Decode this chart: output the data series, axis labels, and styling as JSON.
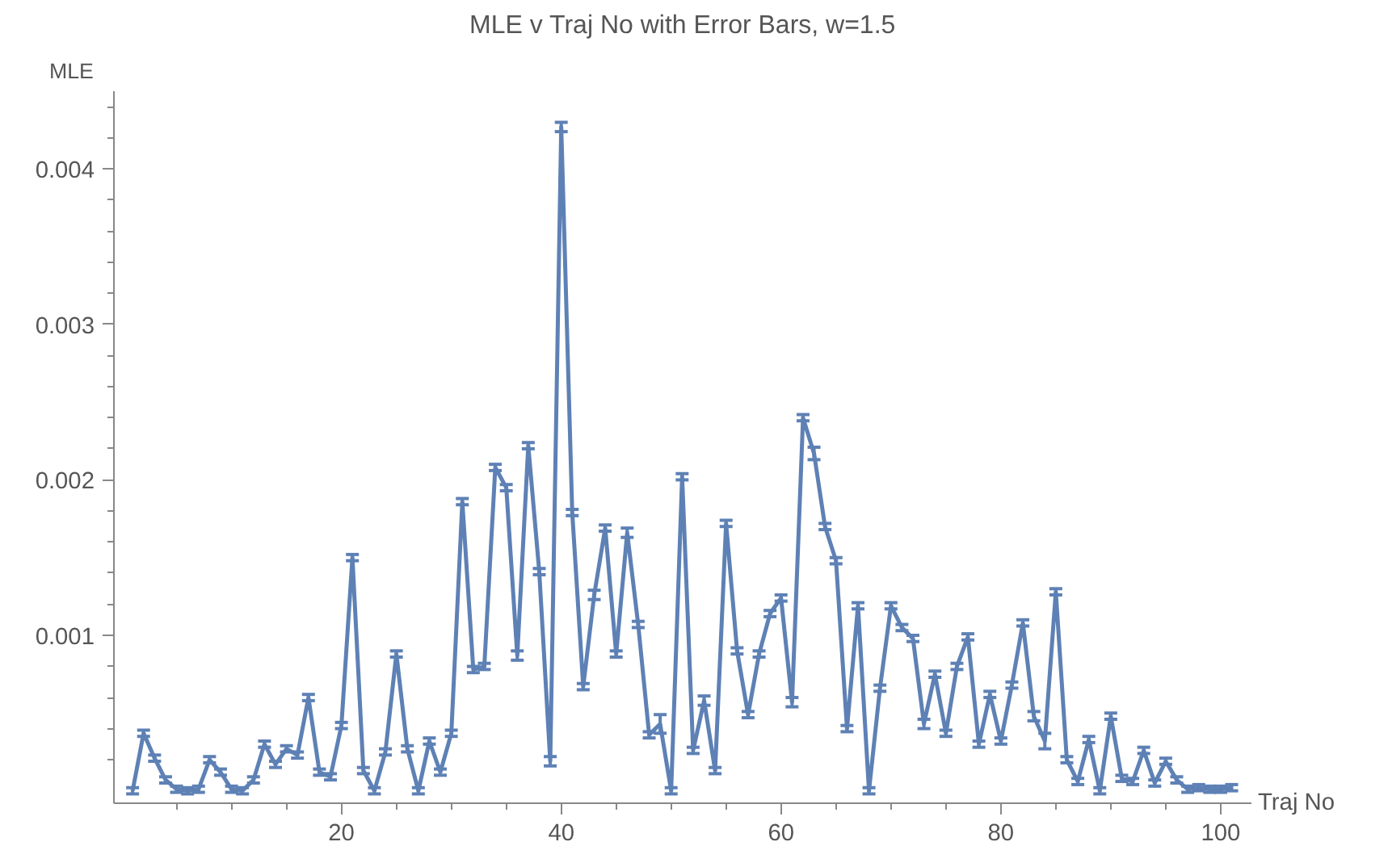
{
  "chart_data": {
    "type": "line",
    "title": "MLE v Traj No with Error Bars, w=1.5",
    "xlabel": "Traj No",
    "ylabel": "MLE",
    "x": [
      1,
      2,
      3,
      4,
      5,
      6,
      7,
      8,
      9,
      10,
      11,
      12,
      13,
      14,
      15,
      16,
      17,
      18,
      19,
      20,
      21,
      22,
      23,
      24,
      25,
      26,
      27,
      28,
      29,
      30,
      31,
      32,
      33,
      34,
      35,
      36,
      37,
      38,
      39,
      40,
      41,
      42,
      43,
      44,
      45,
      46,
      47,
      48,
      49,
      50,
      51,
      52,
      53,
      54,
      55,
      56,
      57,
      58,
      59,
      60,
      61,
      62,
      63,
      64,
      65,
      66,
      67,
      68,
      69,
      70,
      71,
      72,
      73,
      74,
      75,
      76,
      77,
      78,
      79,
      80,
      81,
      82,
      83,
      84,
      85,
      86,
      87,
      88,
      89,
      90,
      91,
      92,
      93,
      94,
      95,
      96,
      97,
      98,
      99,
      100,
      101
    ],
    "series": [
      {
        "color": "#5e81b5",
        "values": [
          0,
          0.00037,
          0.00021,
          7e-05,
          1e-05,
          0,
          1e-05,
          0.0002,
          0.00012,
          1e-05,
          0,
          7e-05,
          0.0003,
          0.00017,
          0.00027,
          0.00023,
          0.0006,
          0.00012,
          9e-05,
          0.00042,
          0.0015,
          0.00013,
          0,
          0.00025,
          0.00088,
          0.00027,
          0,
          0.00032,
          0.00012,
          0.00037,
          0.00186,
          0.00078,
          0.0008,
          0.00208,
          0.00195,
          0.00087,
          0.00222,
          0.00141,
          0.00019,
          0.00427,
          0.00179,
          0.00067,
          0.00126,
          0.00169,
          0.00088,
          0.00166,
          0.00107,
          0.00036,
          0.00043,
          0,
          0.00202,
          0.00026,
          0.00058,
          0.00013,
          0.00172,
          0.0009,
          0.00049,
          0.00088,
          0.00114,
          0.00124,
          0.00057,
          0.0024,
          0.00217,
          0.0017,
          0.00148,
          0.0004,
          0.00119,
          0,
          0.00066,
          0.00119,
          0.00105,
          0.00098,
          0.00043,
          0.00075,
          0.00037,
          0.0008,
          0.00099,
          0.0003,
          0.00062,
          0.00032,
          0.00068,
          0.00108,
          0.00048,
          0.00032,
          0.00128,
          0.0002,
          6e-05,
          0.00033,
          0,
          0.00048,
          8e-05,
          6e-05,
          0.00026,
          5e-05,
          0.00019,
          7e-05,
          1e-05,
          2e-05,
          1e-05,
          1e-05,
          2e-05
        ],
        "errors": [
          2e-05,
          2e-05,
          2e-05,
          2e-05,
          2e-05,
          2e-05,
          2e-05,
          2e-05,
          2e-05,
          2e-05,
          2e-05,
          2e-05,
          2e-05,
          2e-05,
          2e-05,
          2e-05,
          2e-05,
          2e-05,
          2e-05,
          2e-05,
          2e-05,
          2e-05,
          2e-05,
          2e-05,
          2e-05,
          2e-05,
          2e-05,
          2e-05,
          2e-05,
          2e-05,
          2e-05,
          2e-05,
          2e-05,
          2e-05,
          2e-05,
          3e-05,
          2e-05,
          2e-05,
          3e-05,
          3e-05,
          2e-05,
          2e-05,
          3e-05,
          2e-05,
          2e-05,
          3e-05,
          2e-05,
          2e-05,
          6e-05,
          2e-05,
          2e-05,
          2e-05,
          3e-05,
          2e-05,
          2e-05,
          2e-05,
          2e-05,
          2e-05,
          2e-05,
          2e-05,
          3e-05,
          2e-05,
          4e-05,
          2e-05,
          2e-05,
          2e-05,
          2e-05,
          2e-05,
          2e-05,
          2e-05,
          2e-05,
          2e-05,
          3e-05,
          2e-05,
          2e-05,
          2e-05,
          2e-05,
          2e-05,
          2e-05,
          2e-05,
          2e-05,
          2e-05,
          3e-05,
          5e-05,
          2e-05,
          2e-05,
          2e-05,
          2e-05,
          2e-05,
          2e-05,
          2e-05,
          2e-05,
          2e-05,
          2e-05,
          2e-05,
          2e-05,
          2e-05,
          2e-05,
          2e-05,
          2e-05,
          2e-05
        ]
      }
    ],
    "xlim": [
      -0.7,
      102.8
    ],
    "ylim": [
      -8e-05,
      0.0045
    ],
    "xticks": [
      {
        "value": 5,
        "label": null
      },
      {
        "value": 10,
        "label": null
      },
      {
        "value": 15,
        "label": null
      },
      20,
      {
        "value": 25,
        "label": null
      },
      {
        "value": 30,
        "label": null
      },
      {
        "value": 35,
        "label": null
      },
      40,
      {
        "value": 45,
        "label": null
      },
      {
        "value": 50,
        "label": null
      },
      {
        "value": 55,
        "label": null
      },
      60,
      {
        "value": 65,
        "label": null
      },
      {
        "value": 70,
        "label": null
      },
      {
        "value": 75,
        "label": null
      },
      80,
      {
        "value": 85,
        "label": null
      },
      {
        "value": 90,
        "label": null
      },
      {
        "value": 95,
        "label": null
      },
      100
    ],
    "yticks": [
      {
        "value": 0.0002,
        "label": null
      },
      {
        "value": 0.0004,
        "label": null
      },
      {
        "value": 0.0006,
        "label": null
      },
      {
        "value": 0.0008,
        "label": null
      },
      0.001,
      {
        "value": 0.0012,
        "label": null
      },
      {
        "value": 0.0014,
        "label": null
      },
      {
        "value": 0.0016,
        "label": null
      },
      {
        "value": 0.0018,
        "label": null
      },
      0.002,
      {
        "value": 0.0022,
        "label": null
      },
      {
        "value": 0.0024,
        "label": null
      },
      {
        "value": 0.0026,
        "label": null
      },
      {
        "value": 0.0028,
        "label": null
      },
      0.003,
      {
        "value": 0.0032,
        "label": null
      },
      {
        "value": 0.0034,
        "label": null
      },
      {
        "value": 0.0036,
        "label": null
      },
      {
        "value": 0.0038,
        "label": null
      },
      0.004,
      {
        "value": 0.0042,
        "label": null
      },
      {
        "value": 0.0044,
        "label": null
      }
    ],
    "grid": false,
    "marker": "none",
    "line_style": "solid"
  }
}
